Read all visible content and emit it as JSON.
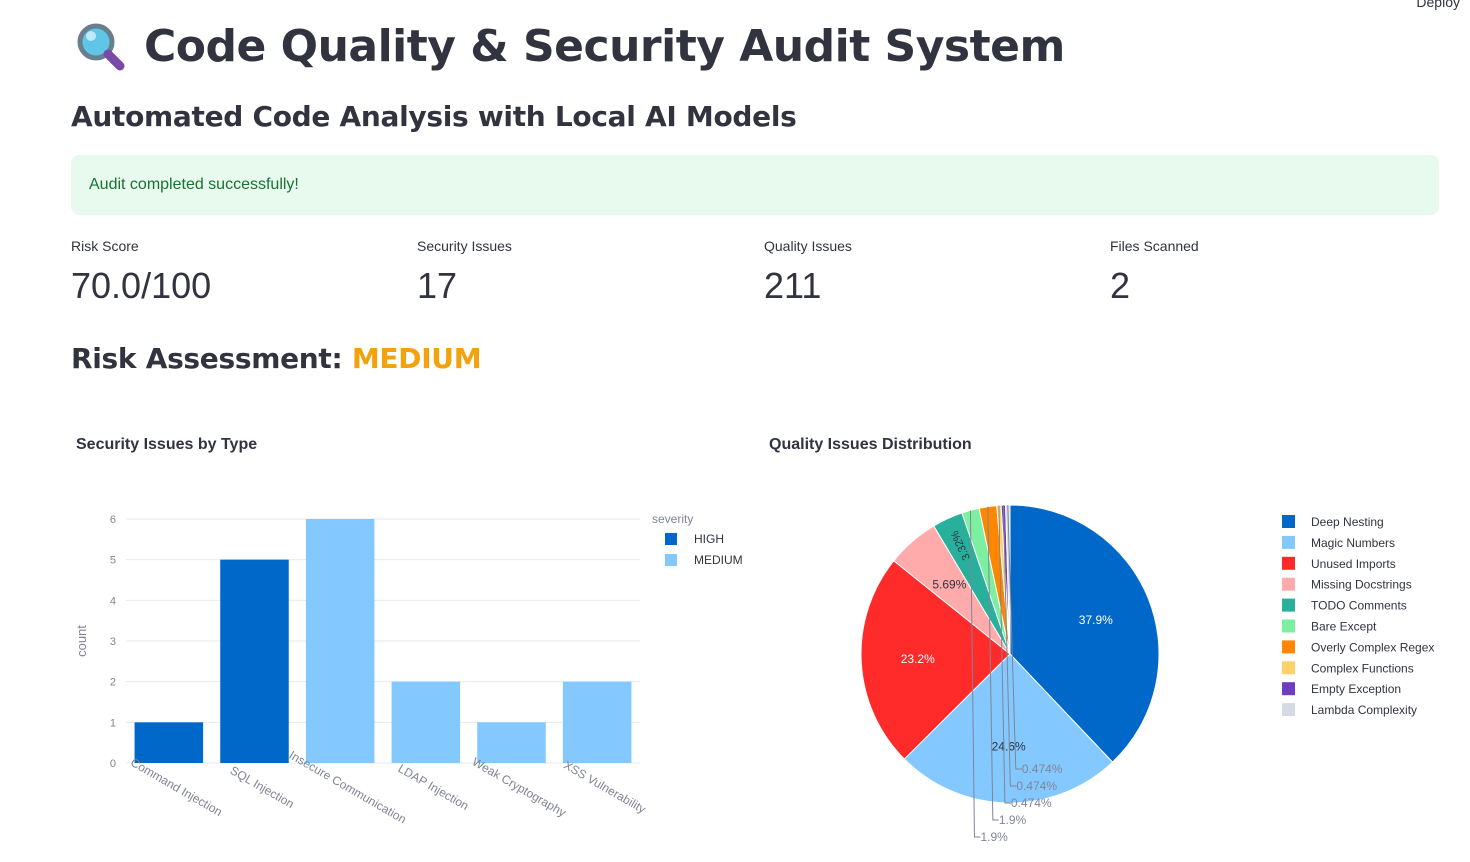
{
  "header": {
    "deploy_label": "Deploy",
    "title": "Code Quality & Security Audit System",
    "title_icon": "magnifying-glass-icon",
    "subtitle": "Automated Code Analysis with Local AI Models"
  },
  "alert": {
    "message": "Audit completed successfully!"
  },
  "metrics": [
    {
      "label": "Risk Score",
      "value": "70.0/100"
    },
    {
      "label": "Security Issues",
      "value": "17"
    },
    {
      "label": "Quality Issues",
      "value": "211"
    },
    {
      "label": "Files Scanned",
      "value": "2"
    }
  ],
  "risk": {
    "label": "Risk Assessment: ",
    "level": "MEDIUM",
    "level_color": "#f2a20c"
  },
  "chart_data": [
    {
      "type": "bar",
      "title": "Security Issues by Type",
      "ylabel": "count",
      "xlabel": "",
      "ylim": [
        0,
        6
      ],
      "yticks": [
        0,
        1,
        2,
        3,
        4,
        5,
        6
      ],
      "grid": true,
      "legend_title": "severity",
      "legend_position": "top-right",
      "categories": [
        "Command Injection",
        "SQL Injection",
        "Insecure Communication",
        "LDAP Injection",
        "Weak Cryptography",
        "XSS Vulnerability"
      ],
      "series": [
        {
          "name": "HIGH",
          "color": "#0068c9",
          "values": [
            1,
            5,
            0,
            0,
            0,
            0
          ]
        },
        {
          "name": "MEDIUM",
          "color": "#83c9ff",
          "values": [
            0,
            0,
            6,
            2,
            1,
            2
          ]
        }
      ]
    },
    {
      "type": "pie",
      "title": "Quality Issues Distribution",
      "legend_position": "right",
      "slices": [
        {
          "label": "Deep Nesting",
          "percent": 37.9,
          "text": "37.9%",
          "color": "#0068c9"
        },
        {
          "label": "Magic Numbers",
          "percent": 24.6,
          "text": "24.6%",
          "color": "#83c9ff"
        },
        {
          "label": "Unused Imports",
          "percent": 23.2,
          "text": "23.2%",
          "color": "#ff2b2b"
        },
        {
          "label": "Missing Docstrings",
          "percent": 5.69,
          "text": "5.69%",
          "color": "#ffabab"
        },
        {
          "label": "TODO Comments",
          "percent": 3.32,
          "text": "3.32%",
          "color": "#29b09d"
        },
        {
          "label": "Bare Except",
          "percent": 1.9,
          "text": "1.9%",
          "color": "#7defa1"
        },
        {
          "label": "Overly Complex Regex",
          "percent": 1.9,
          "text": "1.9%",
          "color": "#ff8700"
        },
        {
          "label": "Complex Functions",
          "percent": 0.474,
          "text": "0.474%",
          "color": "#ffd16a"
        },
        {
          "label": "Empty Exception",
          "percent": 0.474,
          "text": "0.474%",
          "color": "#6d3fc0"
        },
        {
          "label": "Lambda Complexity",
          "percent": 0.474,
          "text": "0.474%",
          "color": "#d5dae5"
        }
      ]
    }
  ]
}
